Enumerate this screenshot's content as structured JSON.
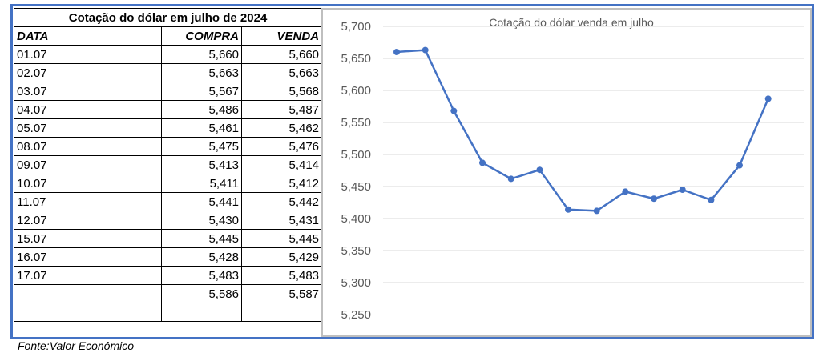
{
  "table": {
    "title": "Cotação do dólar em julho de 2024",
    "headers": [
      "DATA",
      "COMPRA",
      "VENDA"
    ],
    "rows": [
      [
        "01.07",
        "5,660",
        "5,660"
      ],
      [
        "02.07",
        "5,663",
        "5,663"
      ],
      [
        "03.07",
        "5,567",
        "5,568"
      ],
      [
        "04.07",
        "5,486",
        "5,487"
      ],
      [
        "05.07",
        "5,461",
        "5,462"
      ],
      [
        "08.07",
        "5,475",
        "5,476"
      ],
      [
        "09.07",
        "5,413",
        "5,414"
      ],
      [
        "10.07",
        "5,411",
        "5,412"
      ],
      [
        "11.07",
        "5,441",
        "5,442"
      ],
      [
        "12.07",
        "5,430",
        "5,431"
      ],
      [
        "15.07",
        "5,445",
        "5,445"
      ],
      [
        "16.07",
        "5,428",
        "5,429"
      ],
      [
        "17.07",
        "5,483",
        "5,483"
      ],
      [
        "",
        "5,586",
        "5,587"
      ],
      [
        "",
        "",
        ""
      ]
    ]
  },
  "source": "Fonte:Valor Econômico",
  "colors": {
    "frame": "#4472C4",
    "series": "#4472C4",
    "grid": "#D9D9D9",
    "chart_border": "#BFBFBF"
  },
  "chart_data": {
    "type": "line",
    "title": "Cotação do dólar venda em julho",
    "xlabel": "",
    "ylabel": "",
    "ylim": [
      5.25,
      5.7
    ],
    "yticks": [
      "5,250",
      "5,300",
      "5,350",
      "5,400",
      "5,450",
      "5,500",
      "5,550",
      "5,600",
      "5,650",
      "5,700"
    ],
    "grid": true,
    "legend": "none",
    "series": [
      {
        "values": [
          5.66,
          5.663,
          5.568,
          5.487,
          5.462,
          5.476,
          5.414,
          5.412,
          5.442,
          5.431,
          5.445,
          5.429,
          5.483,
          5.587
        ]
      }
    ]
  }
}
